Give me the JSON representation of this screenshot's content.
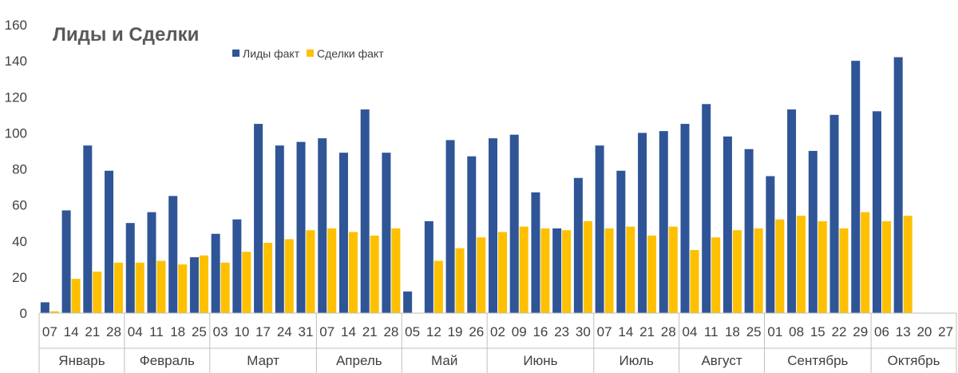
{
  "chart_data": {
    "type": "bar",
    "title": "Лиды и Сделки",
    "xlabel": "",
    "ylabel": "",
    "ylim": [
      0,
      160
    ],
    "yticks": [
      0,
      20,
      40,
      60,
      80,
      100,
      120,
      140,
      160
    ],
    "legend_position": "top-center",
    "grid": false,
    "colors": {
      "leads": "#2F5597",
      "deals": "#FFC000",
      "axis": "#BFBFBF",
      "text": "#404040"
    },
    "categories": [
      "07",
      "14",
      "21",
      "28",
      "04",
      "11",
      "18",
      "25",
      "03",
      "10",
      "17",
      "24",
      "31",
      "07",
      "14",
      "21",
      "28",
      "05",
      "12",
      "19",
      "26",
      "02",
      "09",
      "16",
      "23",
      "30",
      "07",
      "14",
      "21",
      "28",
      "04",
      "11",
      "18",
      "25",
      "01",
      "08",
      "15",
      "22",
      "29",
      "06",
      "13",
      "20",
      "27"
    ],
    "months": [
      {
        "label": "Январь",
        "count": 4
      },
      {
        "label": "Февраль",
        "count": 4
      },
      {
        "label": "Март",
        "count": 5
      },
      {
        "label": "Апрель",
        "count": 4
      },
      {
        "label": "Май",
        "count": 4
      },
      {
        "label": "Июнь",
        "count": 5
      },
      {
        "label": "Июль",
        "count": 4
      },
      {
        "label": "Август",
        "count": 4
      },
      {
        "label": "Сентябрь",
        "count": 5
      },
      {
        "label": "Октябрь",
        "count": 4
      }
    ],
    "series": [
      {
        "name": "Лиды факт",
        "color": "#2F5597",
        "values": [
          6,
          57,
          93,
          79,
          50,
          56,
          65,
          31,
          44,
          52,
          105,
          93,
          95,
          97,
          89,
          113,
          89,
          12,
          51,
          96,
          87,
          97,
          99,
          67,
          47,
          75,
          93,
          79,
          100,
          101,
          105,
          116,
          98,
          91,
          76,
          113,
          90,
          110,
          140,
          112,
          142,
          null,
          null
        ]
      },
      {
        "name": "Сделки факт",
        "color": "#FFC000",
        "values": [
          1,
          19,
          23,
          28,
          28,
          29,
          27,
          32,
          28,
          34,
          39,
          41,
          46,
          47,
          45,
          43,
          47,
          0,
          29,
          36,
          42,
          45,
          48,
          47,
          46,
          51,
          47,
          48,
          43,
          48,
          35,
          42,
          46,
          47,
          52,
          54,
          51,
          47,
          56,
          51,
          54,
          null,
          null
        ]
      }
    ]
  }
}
